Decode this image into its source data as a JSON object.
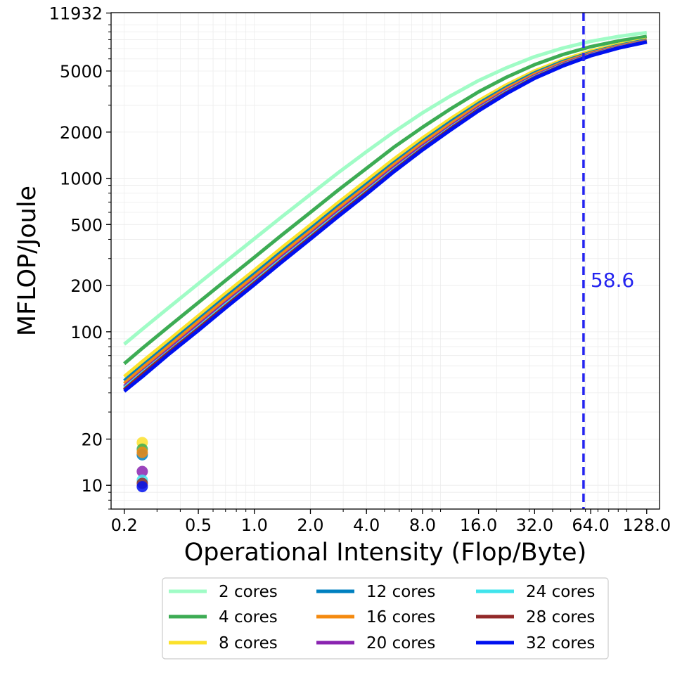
{
  "chart_data": {
    "type": "line",
    "title": "",
    "xlabel": "Operational Intensity (Flop/Byte)",
    "ylabel": "MFLOP/Joule",
    "xscale": "log2",
    "yscale": "log",
    "xlim": [
      0.17,
      150
    ],
    "ylim": [
      7,
      12000
    ],
    "x_ticks": [
      0.2,
      0.5,
      1.0,
      2.0,
      4.0,
      8.0,
      16.0,
      32.0,
      64.0,
      128.0
    ],
    "x_tick_labels": [
      "0.2",
      "0.5",
      "1.0",
      "2.0",
      "4.0",
      "8.0",
      "16.0",
      "32.0",
      "64.0",
      "128.0"
    ],
    "y_ticks": [
      10,
      20,
      100,
      200,
      500,
      1000,
      2000,
      5000,
      11932
    ],
    "y_tick_labels": [
      "10",
      "20",
      "100",
      "200",
      "500",
      "1000",
      "2000",
      "5000",
      "11932"
    ],
    "grid": true,
    "legend_position": "bottom-center",
    "legend_columns": 3,
    "x": [
      0.2,
      0.25,
      0.35,
      0.5,
      0.7,
      1.0,
      1.4,
      2.0,
      2.8,
      4.0,
      5.6,
      8.0,
      11.3,
      16.0,
      22.6,
      32.0,
      45.3,
      64.0,
      90.5,
      128.0
    ],
    "series": [
      {
        "name": "2 cores",
        "color": "#a0fcc6",
        "values": [
          83,
          104,
          145,
          206,
          286,
          404,
          560,
          785,
          1080,
          1490,
          2000,
          2670,
          3440,
          4330,
          5250,
          6200,
          7050,
          7800,
          8400,
          8900
        ]
      },
      {
        "name": "4 cores",
        "color": "#3dac54",
        "values": [
          62,
          78,
          109,
          155,
          216,
          306,
          426,
          600,
          832,
          1160,
          1590,
          2150,
          2830,
          3660,
          4550,
          5500,
          6400,
          7200,
          7850,
          8400
        ]
      },
      {
        "name": "8 cores",
        "color": "#fbe12b",
        "values": [
          51,
          64,
          89,
          127,
          178,
          252,
          352,
          497,
          690,
          967,
          1330,
          1830,
          2440,
          3200,
          4060,
          5000,
          5900,
          6750,
          7450,
          8050
        ]
      },
      {
        "name": "12 cores",
        "color": "#0080c0",
        "values": [
          48,
          60,
          84,
          120,
          168,
          238,
          332,
          469,
          652,
          914,
          1260,
          1740,
          2330,
          3070,
          3920,
          4860,
          5760,
          6600,
          7330,
          7950
        ]
      },
      {
        "name": "16 cores",
        "color": "#f48a0f",
        "values": [
          46,
          58,
          81,
          116,
          162,
          229,
          320,
          452,
          629,
          882,
          1220,
          1690,
          2260,
          2990,
          3830,
          4760,
          5660,
          6520,
          7260,
          7880
        ]
      },
      {
        "name": "20 cores",
        "color": "#8a23b0",
        "values": [
          44,
          55,
          77,
          110,
          154,
          218,
          305,
          431,
          600,
          843,
          1170,
          1620,
          2170,
          2890,
          3720,
          4640,
          5550,
          6420,
          7170,
          7810
        ]
      },
      {
        "name": "24 cores",
        "color": "#40e4ec",
        "values": [
          43,
          54,
          75,
          107,
          150,
          212,
          297,
          420,
          585,
          822,
          1140,
          1580,
          2130,
          2830,
          3650,
          4570,
          5480,
          6360,
          7120,
          7770
        ]
      },
      {
        "name": "28 cores",
        "color": "#922929",
        "values": [
          42,
          53,
          74,
          105,
          147,
          208,
          291,
          412,
          574,
          807,
          1120,
          1560,
          2100,
          2800,
          3610,
          4530,
          5440,
          6320,
          7090,
          7750
        ]
      },
      {
        "name": "32 cores",
        "color": "#0010f0",
        "values": [
          41,
          51,
          72,
          102,
          143,
          203,
          284,
          402,
          560,
          788,
          1100,
          1530,
          2060,
          2750,
          3560,
          4480,
          5390,
          6280,
          7060,
          7720
        ]
      }
    ],
    "scatter": {
      "x": 0.25,
      "points": [
        {
          "y": 19.0,
          "color": "#fbe12b"
        },
        {
          "y": 17.2,
          "color": "#3dac54"
        },
        {
          "y": 15.8,
          "color": "#0080c0"
        },
        {
          "y": 16.4,
          "color": "#f48a0f"
        },
        {
          "y": 12.3,
          "color": "#8a23b0"
        },
        {
          "y": 10.8,
          "color": "#40e4ec"
        },
        {
          "y": 10.3,
          "color": "#922929"
        },
        {
          "y": 9.8,
          "color": "#0010f0"
        }
      ]
    },
    "vline": {
      "x": 58.6,
      "label": "58.6",
      "color": "#2424f0",
      "style": "dashed"
    }
  }
}
